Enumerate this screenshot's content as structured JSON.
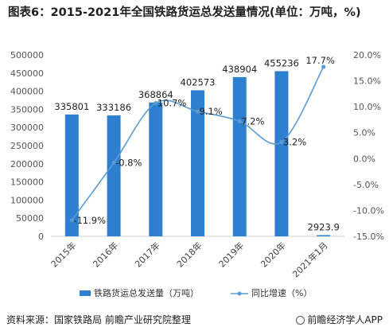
{
  "chart_data": {
    "type": "bar",
    "title": "图表6：2015-2021年全国铁路货运总发送量情况(单位：万吨，%)",
    "categories": [
      "2015年",
      "2016年",
      "2017年",
      "2018年",
      "2019年",
      "2020年",
      "2021年1月"
    ],
    "series": [
      {
        "name": "铁路货运总发送量（万吨）",
        "type": "bar",
        "axis": "left",
        "color": "#2f7fd1",
        "values": [
          335801,
          333186,
          368864,
          402573,
          438904,
          455236,
          2923.9
        ],
        "value_labels": [
          "335801",
          "333186",
          "368864",
          "402573",
          "438904",
          "455236",
          "2923.9"
        ]
      },
      {
        "name": "同比增速（%）",
        "type": "line",
        "axis": "right",
        "color": "#5b9bd5",
        "values": [
          -11.9,
          -0.8,
          10.7,
          9.1,
          7.2,
          3.2,
          17.7
        ],
        "value_labels": [
          "-11.9%",
          "-0.8%",
          "10.7%",
          "9.1%",
          "7.2%",
          "3.2%",
          "17.7%"
        ]
      }
    ],
    "left_axis": {
      "ylim": [
        0,
        500000
      ],
      "ticks": [
        "0",
        "50000",
        "100000",
        "150000",
        "200000",
        "250000",
        "300000",
        "350000",
        "400000",
        "450000",
        "500000"
      ]
    },
    "right_axis": {
      "ylim": [
        -15,
        20
      ],
      "ticks": [
        "-15.0%",
        "-10.0%",
        "-5.0%",
        "0.0%",
        "5.0%",
        "10.0%",
        "15.0%",
        "20.0%"
      ]
    },
    "grid": false,
    "legend": "bottom"
  },
  "footer": {
    "source": "资料来源：国家铁路局 前瞻产业研究院整理",
    "brand": "前瞻经济学人APP"
  }
}
